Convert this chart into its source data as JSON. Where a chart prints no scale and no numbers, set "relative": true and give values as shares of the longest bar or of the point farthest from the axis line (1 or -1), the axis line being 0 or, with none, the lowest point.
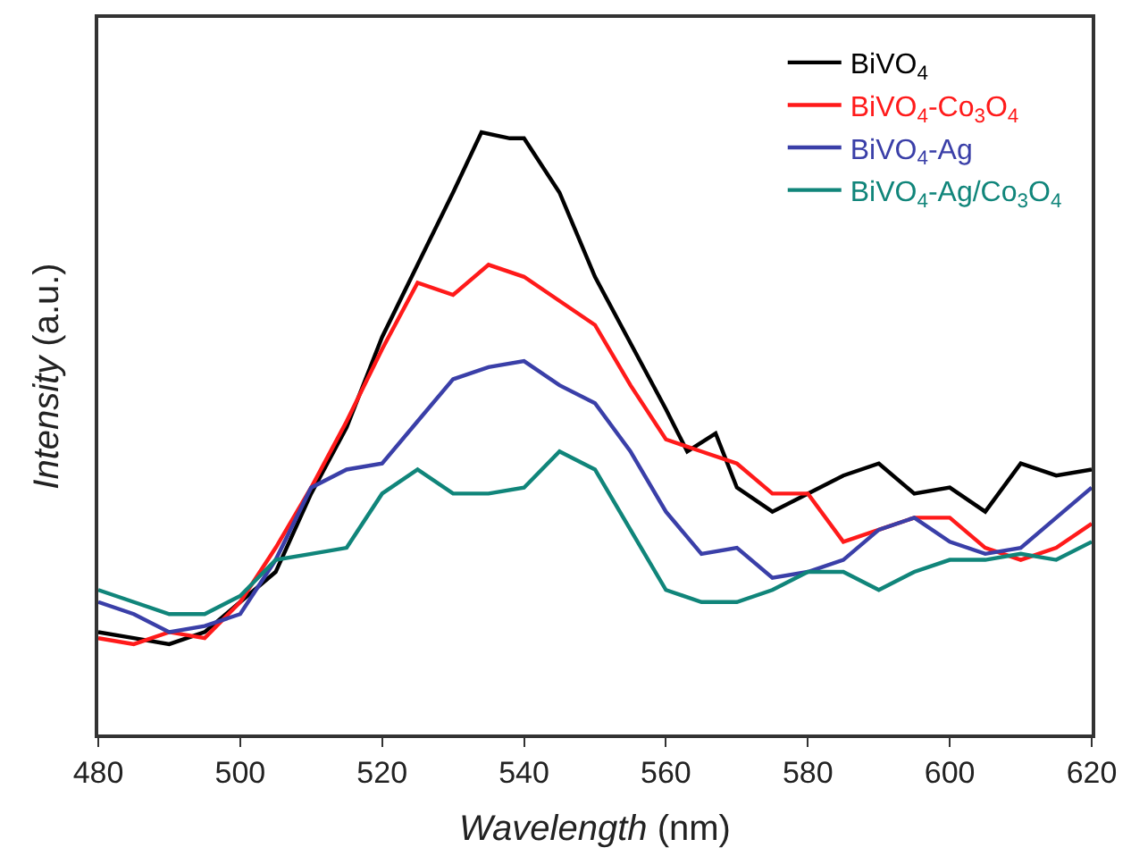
{
  "chart_data": {
    "type": "line",
    "relative": true,
    "xlabel": "Wavelength (nm)",
    "ylabel": "Intensity (a.u.)",
    "xlim": [
      480,
      620
    ],
    "xticks": [
      480,
      500,
      520,
      540,
      560,
      580,
      600,
      620
    ],
    "legend": "top right",
    "marker": "none",
    "line_style": "solid",
    "x": [
      480,
      485,
      490,
      495,
      500,
      505,
      510,
      515,
      520,
      525,
      530,
      535,
      540,
      545,
      550,
      555,
      560,
      565,
      570,
      575,
      580,
      585,
      590,
      595,
      600,
      605,
      610,
      615,
      620
    ],
    "series": [
      {
        "name": "BiVO$_{4}$",
        "color": "#000000",
        "x": [
          480,
          485,
          490,
          495,
          500,
          505,
          510,
          515,
          520,
          525,
          530,
          534,
          538,
          540,
          545,
          550,
          555,
          560,
          563,
          567,
          570,
          575,
          580,
          585,
          590,
          595,
          600,
          605,
          610,
          615,
          620
        ],
        "values": [
          0.17,
          0.16,
          0.15,
          0.17,
          0.22,
          0.27,
          0.4,
          0.51,
          0.66,
          0.78,
          0.9,
          1.0,
          0.99,
          0.99,
          0.9,
          0.76,
          0.65,
          0.54,
          0.47,
          0.5,
          0.41,
          0.37,
          0.4,
          0.43,
          0.45,
          0.4,
          0.41,
          0.37,
          0.45,
          0.43,
          0.44
        ]
      },
      {
        "name": "BiVO$_{4}$-Co$_{3}$O$_{4}$",
        "color": "#ff1a1a",
        "values": [
          0.16,
          0.15,
          0.17,
          0.16,
          0.22,
          0.31,
          0.41,
          0.52,
          0.64,
          0.75,
          0.73,
          0.78,
          0.76,
          0.72,
          0.68,
          0.58,
          0.49,
          0.47,
          0.45,
          0.4,
          0.4,
          0.32,
          0.34,
          0.36,
          0.36,
          0.31,
          0.29,
          0.31,
          0.35
        ]
      },
      {
        "name": "BiVO$_{4}$-Ag",
        "color": "#3a3fa8",
        "values": [
          0.22,
          0.2,
          0.17,
          0.18,
          0.2,
          0.29,
          0.41,
          0.44,
          0.45,
          0.52,
          0.59,
          0.61,
          0.62,
          0.58,
          0.55,
          0.47,
          0.37,
          0.3,
          0.31,
          0.26,
          0.27,
          0.29,
          0.34,
          0.36,
          0.32,
          0.3,
          0.31,
          0.36,
          0.41
        ]
      },
      {
        "name": "BiVO$_{4}$-Ag/Co$_{3}$O$_{4}$",
        "color": "#10857a",
        "values": [
          0.24,
          0.22,
          0.2,
          0.2,
          0.23,
          0.29,
          0.3,
          0.31,
          0.4,
          0.44,
          0.4,
          0.4,
          0.41,
          0.47,
          0.44,
          0.34,
          0.24,
          0.22,
          0.22,
          0.24,
          0.27,
          0.27,
          0.24,
          0.27,
          0.29,
          0.29,
          0.3,
          0.29,
          0.32
        ]
      }
    ]
  }
}
